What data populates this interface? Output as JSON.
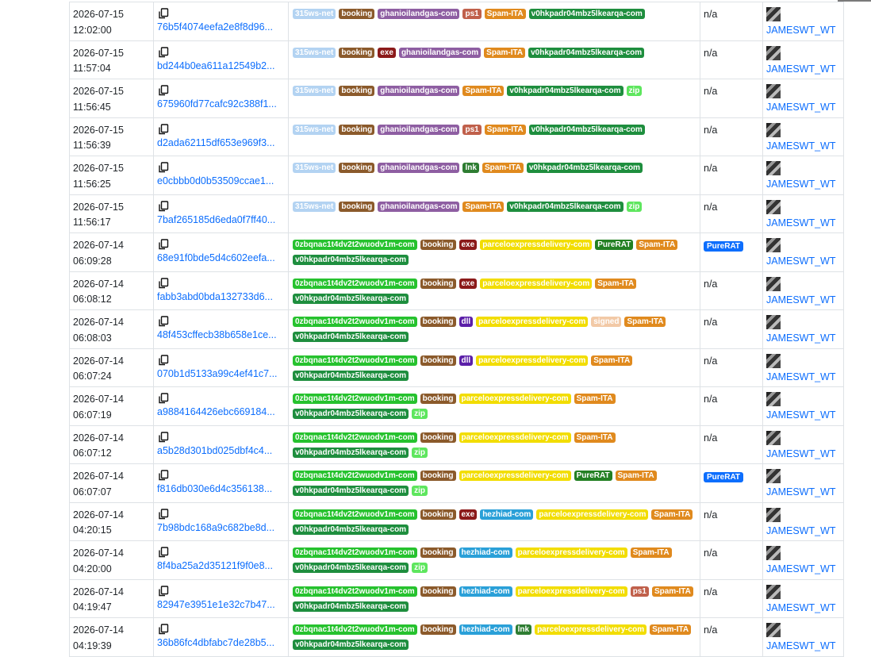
{
  "tag_colors": {
    "315ws-net": "#b3d3f2",
    "booking": "#8b5a2b",
    "ghanioilandgas-com": "#8e5ea2",
    "ps1": "#c0604b",
    "Spam-ITA": "#e08a1e",
    "v0hkpadr04mbz5lkearqa-com": "#1e8e3e",
    "exe": "#8b1a1a",
    "zip": "#5ee65e",
    "lnk": "#2e7d32",
    "0zbqnac1t4dv2t2wuodv1m-com": "#26c22e",
    "parceloexpressdelivery-com": "#f2dd00",
    "PureRAT": "#238023",
    "dll": "#5b1fa8",
    "signed": "#f2c9a6",
    "hezhiad-com": "#2aa0d8"
  },
  "rows": [
    {
      "date": "2026-07-15",
      "time": "12:02:00",
      "hash": "76b5f4074eefa2e8f8d96...",
      "tags": [
        "315ws-net",
        "booking",
        "ghanioilandgas-com",
        "ps1",
        "Spam-ITA",
        "v0hkpadr04mbz5lkearqa-com"
      ],
      "signature": "n/a",
      "reporter": "JAMESWT_WT"
    },
    {
      "date": "2026-07-15",
      "time": "11:57:04",
      "hash": "bd244b0ea611a12549b2...",
      "tags": [
        "315ws-net",
        "booking",
        "exe",
        "ghanioilandgas-com",
        "Spam-ITA",
        "v0hkpadr04mbz5lkearqa-com"
      ],
      "signature": "n/a",
      "reporter": "JAMESWT_WT"
    },
    {
      "date": "2026-07-15",
      "time": "11:56:45",
      "hash": "675960fd77cafc92c388f1...",
      "tags": [
        "315ws-net",
        "booking",
        "ghanioilandgas-com",
        "Spam-ITA",
        "v0hkpadr04mbz5lkearqa-com",
        "zip"
      ],
      "signature": "n/a",
      "reporter": "JAMESWT_WT"
    },
    {
      "date": "2026-07-15",
      "time": "11:56:39",
      "hash": "d2ada62115df653e969f3...",
      "tags": [
        "315ws-net",
        "booking",
        "ghanioilandgas-com",
        "ps1",
        "Spam-ITA",
        "v0hkpadr04mbz5lkearqa-com"
      ],
      "signature": "n/a",
      "reporter": "JAMESWT_WT"
    },
    {
      "date": "2026-07-15",
      "time": "11:56:25",
      "hash": "e0cbbb0d0b53509ccae1...",
      "tags": [
        "315ws-net",
        "booking",
        "ghanioilandgas-com",
        "lnk",
        "Spam-ITA",
        "v0hkpadr04mbz5lkearqa-com"
      ],
      "signature": "n/a",
      "reporter": "JAMESWT_WT"
    },
    {
      "date": "2026-07-15",
      "time": "11:56:17",
      "hash": "7baf265185d6eda0f7ff40...",
      "tags": [
        "315ws-net",
        "booking",
        "ghanioilandgas-com",
        "Spam-ITA",
        "v0hkpadr04mbz5lkearqa-com",
        "zip"
      ],
      "signature": "n/a",
      "reporter": "JAMESWT_WT"
    },
    {
      "date": "2026-07-14",
      "time": "06:09:28",
      "hash": "68e91f0bde5d4c602eefa...",
      "tags": [
        "0zbqnac1t4dv2t2wuodv1m-com",
        "booking",
        "exe",
        "parceloexpressdelivery-com",
        "PureRAT",
        "Spam-ITA",
        "v0hkpadr04mbz5lkearqa-com"
      ],
      "signature": "PureRAT",
      "reporter": "JAMESWT_WT"
    },
    {
      "date": "2026-07-14",
      "time": "06:08:12",
      "hash": "fabb3abd0bda132733d6...",
      "tags": [
        "0zbqnac1t4dv2t2wuodv1m-com",
        "booking",
        "exe",
        "parceloexpressdelivery-com",
        "Spam-ITA",
        "v0hkpadr04mbz5lkearqa-com"
      ],
      "signature": "n/a",
      "reporter": "JAMESWT_WT"
    },
    {
      "date": "2026-07-14",
      "time": "06:08:03",
      "hash": "48f453cffecb38b658e1ce...",
      "tags": [
        "0zbqnac1t4dv2t2wuodv1m-com",
        "booking",
        "dll",
        "parceloexpressdelivery-com",
        "signed",
        "Spam-ITA",
        "v0hkpadr04mbz5lkearqa-com"
      ],
      "signature": "n/a",
      "reporter": "JAMESWT_WT"
    },
    {
      "date": "2026-07-14",
      "time": "06:07:24",
      "hash": "070b1d5133a99c4ef41c7...",
      "tags": [
        "0zbqnac1t4dv2t2wuodv1m-com",
        "booking",
        "dll",
        "parceloexpressdelivery-com",
        "Spam-ITA",
        "v0hkpadr04mbz5lkearqa-com"
      ],
      "signature": "n/a",
      "reporter": "JAMESWT_WT"
    },
    {
      "date": "2026-07-14",
      "time": "06:07:19",
      "hash": "a9884164426ebc669184...",
      "tags": [
        "0zbqnac1t4dv2t2wuodv1m-com",
        "booking",
        "parceloexpressdelivery-com",
        "Spam-ITA",
        "v0hkpadr04mbz5lkearqa-com",
        "zip"
      ],
      "signature": "n/a",
      "reporter": "JAMESWT_WT"
    },
    {
      "date": "2026-07-14",
      "time": "06:07:12",
      "hash": "a5b28d301bd025dbf4c4...",
      "tags": [
        "0zbqnac1t4dv2t2wuodv1m-com",
        "booking",
        "parceloexpressdelivery-com",
        "Spam-ITA",
        "v0hkpadr04mbz5lkearqa-com",
        "zip"
      ],
      "signature": "n/a",
      "reporter": "JAMESWT_WT"
    },
    {
      "date": "2026-07-14",
      "time": "06:07:07",
      "hash": "f816db030e6d4c356138...",
      "tags": [
        "0zbqnac1t4dv2t2wuodv1m-com",
        "booking",
        "parceloexpressdelivery-com",
        "PureRAT",
        "Spam-ITA",
        "v0hkpadr04mbz5lkearqa-com",
        "zip"
      ],
      "signature": "PureRAT",
      "reporter": "JAMESWT_WT"
    },
    {
      "date": "2026-07-14",
      "time": "04:20:15",
      "hash": "7b98bdc168a9c682be8d...",
      "tags": [
        "0zbqnac1t4dv2t2wuodv1m-com",
        "booking",
        "exe",
        "hezhiad-com",
        "parceloexpressdelivery-com",
        "Spam-ITA",
        "v0hkpadr04mbz5lkearqa-com"
      ],
      "signature": "n/a",
      "reporter": "JAMESWT_WT"
    },
    {
      "date": "2026-07-14",
      "time": "04:20:00",
      "hash": "8f4ba25a2d35121f9f0e8...",
      "tags": [
        "0zbqnac1t4dv2t2wuodv1m-com",
        "booking",
        "hezhiad-com",
        "parceloexpressdelivery-com",
        "Spam-ITA",
        "v0hkpadr04mbz5lkearqa-com",
        "zip"
      ],
      "signature": "n/a",
      "reporter": "JAMESWT_WT"
    },
    {
      "date": "2026-07-14",
      "time": "04:19:47",
      "hash": "82947e3951e1e32c7b47...",
      "tags": [
        "0zbqnac1t4dv2t2wuodv1m-com",
        "booking",
        "hezhiad-com",
        "parceloexpressdelivery-com",
        "ps1",
        "Spam-ITA",
        "v0hkpadr04mbz5lkearqa-com"
      ],
      "signature": "n/a",
      "reporter": "JAMESWT_WT"
    },
    {
      "date": "2026-07-14",
      "time": "04:19:39",
      "hash": "36b86fc4dbfabc7de28b5...",
      "tags": [
        "0zbqnac1t4dv2t2wuodv1m-com",
        "booking",
        "hezhiad-com",
        "lnk",
        "parceloexpressdelivery-com",
        "Spam-ITA",
        "v0hkpadr04mbz5lkearqa-com"
      ],
      "signature": "n/a",
      "reporter": "JAMESWT_WT"
    }
  ]
}
